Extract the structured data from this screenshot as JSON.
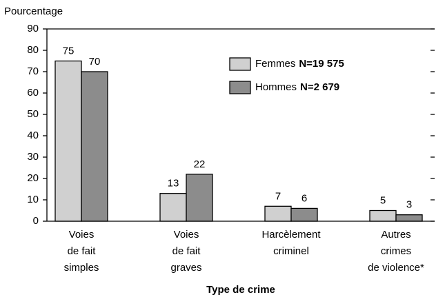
{
  "chart_data": {
    "type": "bar",
    "y_label": "Pourcentage",
    "x_label": "Type de crime",
    "categories": [
      [
        "Voies",
        "de fait",
        "simples"
      ],
      [
        "Voies",
        "de fait",
        "graves"
      ],
      [
        "Harcèlement",
        "criminel"
      ],
      [
        "Autres",
        "crimes",
        "de violence*"
      ]
    ],
    "series": [
      {
        "name": "Femmes",
        "count_label": "N=19 575",
        "color": "#d0d0d0",
        "values": [
          75,
          13,
          7,
          5
        ]
      },
      {
        "name": "Hommes",
        "count_label": "N=2 679",
        "color": "#8c8c8c",
        "values": [
          70,
          22,
          6,
          3
        ]
      }
    ],
    "ylim": [
      0,
      90
    ],
    "yticks": [
      0,
      10,
      20,
      30,
      40,
      50,
      60,
      70,
      80,
      90
    ]
  }
}
